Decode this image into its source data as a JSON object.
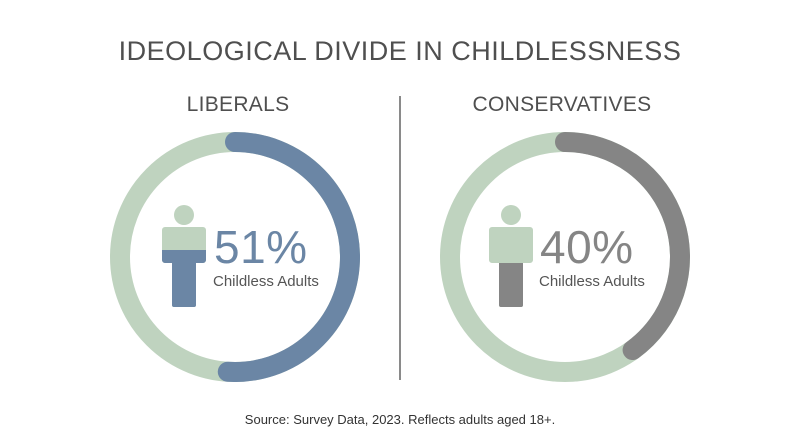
{
  "title": "IDEOLOGICAL DIVIDE IN CHILDLESSNESS",
  "source": "Source: Survey Data, 2023. Reflects adults aged 18+.",
  "colors": {
    "track": "#bfd3bf",
    "liberal_fill": "#6b86a5",
    "conservative_fill": "#858585",
    "person_top": "#bfd3bf"
  },
  "icons": {
    "person": "person-icon"
  },
  "chart_data": [
    {
      "type": "pie",
      "title": "LIBERALS",
      "value": 51,
      "display": "51%",
      "label": "Childless Adults"
    },
    {
      "type": "pie",
      "title": "CONSERVATIVES",
      "value": 40,
      "display": "40%",
      "label": "Childless Adults"
    }
  ]
}
